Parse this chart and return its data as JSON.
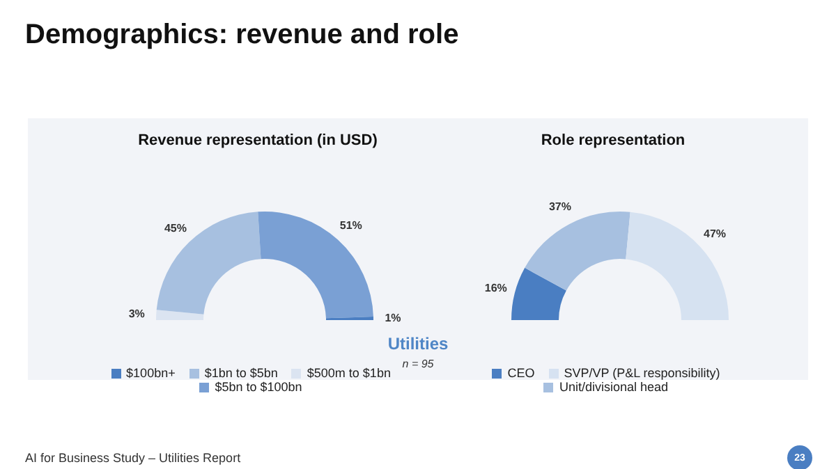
{
  "chart_data": [
    {
      "type": "donut",
      "title": "Revenue representation (in USD)",
      "categories": [
        "$500m to $1bn",
        "$1bn to $5bn",
        "$5bn to $100bn",
        "$100bn+"
      ],
      "values": [
        3,
        45,
        51,
        1
      ],
      "value_labels": [
        "3%",
        "45%",
        "51%",
        "1%"
      ],
      "colors": [
        "#dbe4f1",
        "#a7c0e0",
        "#7aa0d4",
        "#4a7ec2"
      ],
      "legend": "bottom",
      "annotations": [
        "Demographics: revenue and role",
        "Utilities",
        "n = 95",
        "AI for Business Study – Utilities Report",
        "23"
      ]
    },
    {
      "type": "donut",
      "title": "Role representation",
      "categories": [
        "CEO",
        "Unit/divisional head",
        "SVP/VP (P&L responsibility)"
      ],
      "values": [
        16,
        37,
        47
      ],
      "value_labels": [
        "16%",
        "37%",
        "47%"
      ],
      "colors": [
        "#4a7ec2",
        "#a7c0e0",
        "#d6e2f1"
      ],
      "legend": "bottom"
    }
  ]
}
